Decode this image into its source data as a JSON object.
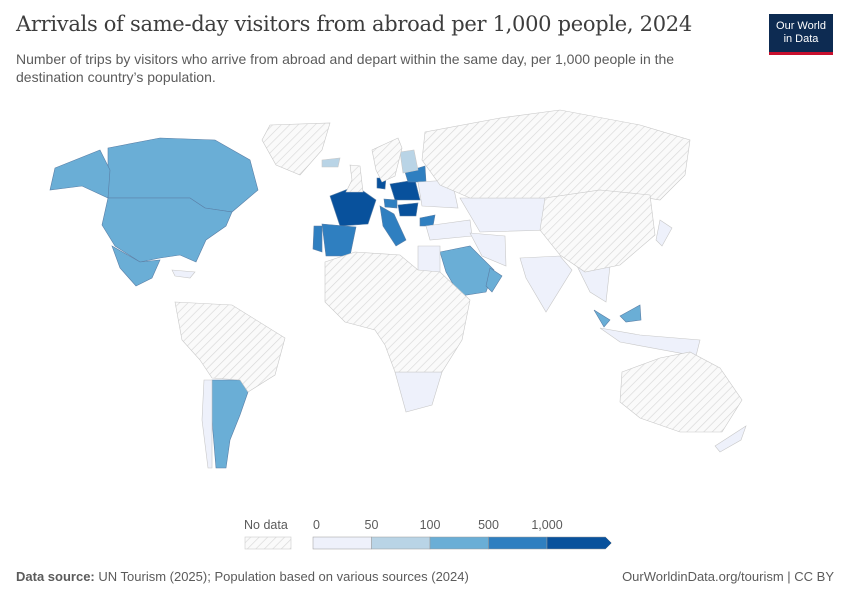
{
  "header": {
    "title": "Arrivals of same-day visitors from abroad per 1,000 people, 2024",
    "subtitle": "Number of trips by visitors who arrive from abroad and depart within the same day, per 1,000 people in the destination country’s population.",
    "logo_line1": "Our World",
    "logo_line2": "in Data"
  },
  "legend": {
    "no_data_label": "No data",
    "ticks": [
      "0",
      "50",
      "100",
      "500",
      "1,000"
    ],
    "bins": [
      {
        "range": "0–50",
        "color": "#eef1fb"
      },
      {
        "range": "50–100",
        "color": "#b9d4e6"
      },
      {
        "range": "100–500",
        "color": "#6aaed6"
      },
      {
        "range": "500–1,000",
        "color": "#2f7fc0"
      },
      {
        "range": "1,000+",
        "color": "#08519c"
      }
    ],
    "no_data_color": "#f2f2f2"
  },
  "chart_data": {
    "type": "map",
    "year": "2024",
    "bins": [
      "0",
      "50",
      "100",
      "500",
      "1,000"
    ],
    "regions": {
      "Canada": 2,
      "United States": 2,
      "Alaska": 2,
      "Mexico": 2,
      "Argentina": 2,
      "Chile": 0,
      "Saudi Arabia": 2,
      "Oman": 2,
      "Malaysia": 2,
      "Malaysia (Borneo)": 2,
      "France": 4,
      "Poland": 4,
      "Hungary": 4,
      "Denmark": 4,
      "Spain": 3,
      "Portugal": 3,
      "Italy": 3,
      "Czechia": 3,
      "Baltics": 3,
      "Bulgaria": 3,
      "Finland": 1,
      "Iceland": 1,
      "Ukraine/Belarus": 0,
      "Turkey": 0,
      "Iran": 0,
      "Central Asia": 0,
      "India": 0,
      "Southeast Asia": 0,
      "Indonesia": 0,
      "New Zealand": 0,
      "Southern Africa": 0,
      "Egypt": 0,
      "Japan": 0,
      "Caribbean": 0,
      "Greenland": null,
      "Russia": null,
      "China": null,
      "South America (rest)": null,
      "Africa (rest)": null,
      "Australia": null,
      "United Kingdom": null,
      "Scandinavia": null
    }
  },
  "footer": {
    "source_label": "Data source:",
    "source_text": "UN Tourism (2025); Population based on various sources (2024)",
    "url": "OurWorldinData.org/tourism | CC BY"
  }
}
